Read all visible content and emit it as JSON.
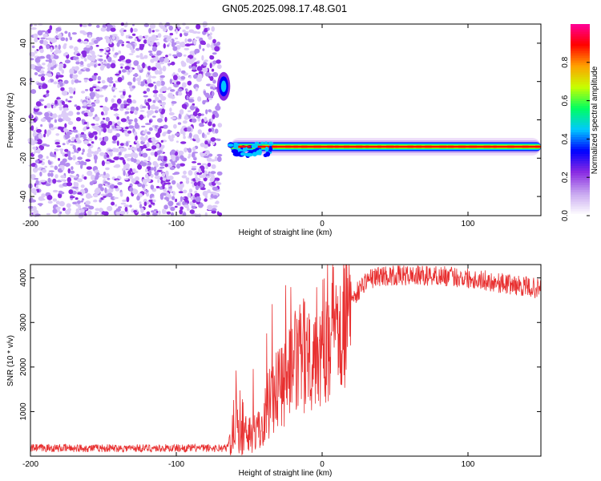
{
  "title": "GN05.2025.098.17.48.G01",
  "chart_data": [
    {
      "type": "heatmap",
      "xlabel": "Height of straight line (km)",
      "ylabel": "Frequency (Hz)",
      "colorbar_label": "Normalized spectral amplitude",
      "xlim": [
        -200,
        150
      ],
      "ylim": [
        -50,
        50
      ],
      "zlim": [
        0,
        1
      ],
      "xticks": [
        -200,
        -100,
        0,
        100
      ],
      "yticks": [
        -40,
        -20,
        0,
        20,
        40
      ],
      "cticks": [
        0.0,
        0.2,
        0.4,
        0.6,
        0.8
      ],
      "colormap": [
        "#ffffff",
        "#c8a8f0",
        "#8a2be2",
        "#0000ff",
        "#00c8ff",
        "#00ff60",
        "#c8ff00",
        "#ffa000",
        "#ff0000",
        "#ff00a0"
      ],
      "features": [
        {
          "name": "noise",
          "x_range": [
            -200,
            -70
          ],
          "y_range": [
            -50,
            50
          ],
          "level": 0.12
        },
        {
          "name": "burst",
          "x_range": [
            -72,
            -63
          ],
          "y_range": [
            10,
            25
          ],
          "level": 0.35
        },
        {
          "name": "carrier",
          "x_range": [
            -63,
            150
          ],
          "y_center": -14,
          "level": 0.85
        }
      ]
    },
    {
      "type": "line",
      "xlabel": "Height of straight line (km)",
      "ylabel": "SNR (10 * v/v)",
      "xlim": [
        -200,
        150
      ],
      "ylim": [
        0,
        4300
      ],
      "xticks": [
        -200,
        -100,
        0,
        100
      ],
      "yticks": [
        1000,
        2000,
        3000,
        4000
      ],
      "color": "#e83030",
      "profile": [
        [
          -200,
          180
        ],
        [
          -65,
          180
        ],
        [
          -60,
          900
        ],
        [
          -55,
          400
        ],
        [
          -48,
          600
        ],
        [
          -44,
          500
        ],
        [
          -40,
          900
        ],
        [
          -35,
          1400
        ],
        [
          -28,
          1650
        ],
        [
          -20,
          2000
        ],
        [
          -10,
          2350
        ],
        [
          0,
          2500
        ],
        [
          10,
          3100
        ],
        [
          20,
          3500
        ],
        [
          30,
          3950
        ],
        [
          40,
          4050
        ],
        [
          60,
          4050
        ],
        [
          80,
          4050
        ],
        [
          100,
          4000
        ],
        [
          130,
          3850
        ],
        [
          150,
          3750
        ]
      ]
    }
  ]
}
